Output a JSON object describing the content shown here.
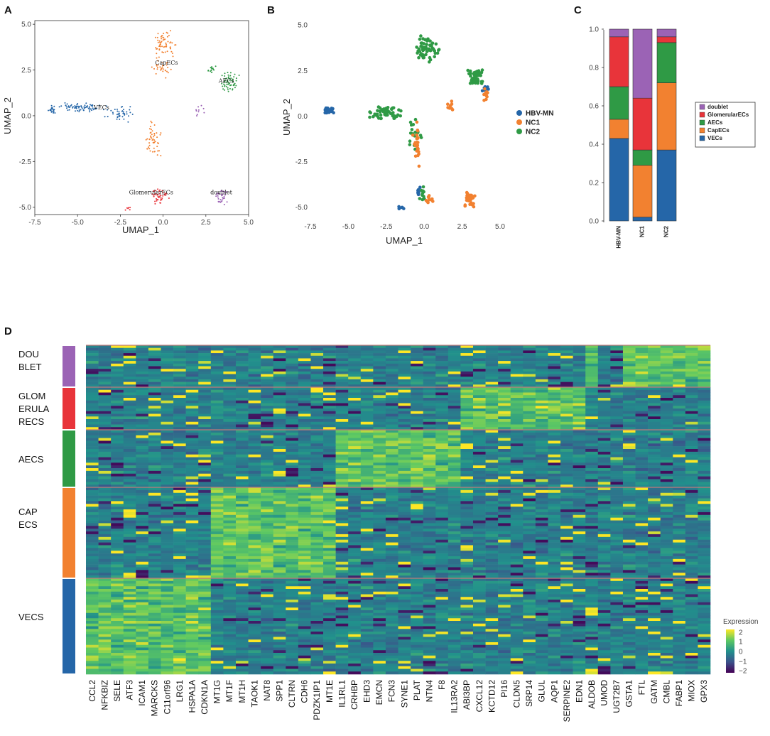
{
  "colors": {
    "doublet": "#9b63b5",
    "glomerular": "#e8343a",
    "aecs": "#2f9a45",
    "capecs": "#f28130",
    "vecs": "#2566a8"
  },
  "chart_data": [
    {
      "panel": "A",
      "type": "scatter",
      "xlabel": "UMAP_1",
      "ylabel": "UMAP_2",
      "xlim": [
        -7.5,
        5.0
      ],
      "ylim": [
        -5.4,
        5.2
      ],
      "xticks": [
        "-7.5",
        "-5.0",
        "-2.5",
        "0.0",
        "2.5",
        "5.0"
      ],
      "yticks": [
        "5.0",
        "2.5",
        "0.0",
        "-2.5",
        "-5.0"
      ],
      "clusters": [
        {
          "name": "VECs",
          "color": "#2566a8",
          "center": [
            -3.6,
            0.35
          ]
        },
        {
          "name": "CapECs",
          "color": "#f28130",
          "center": [
            0.2,
            2.8
          ]
        },
        {
          "name": "AECs",
          "color": "#2f9a45",
          "center": [
            3.7,
            1.8
          ]
        },
        {
          "name": "GlomerularECs",
          "color": "#e8343a",
          "center": [
            -0.7,
            -4.3
          ]
        },
        {
          "name": "doublet",
          "color": "#9b63b5",
          "center": [
            3.4,
            -4.3
          ]
        }
      ]
    },
    {
      "panel": "B",
      "type": "scatter",
      "xlabel": "UMAP_1",
      "ylabel": "UMAP_2",
      "xlim": [
        -7.5,
        5.0
      ],
      "ylim": [
        -5.4,
        5.2
      ],
      "xticks": [
        "-7.5",
        "-5.0",
        "-2.5",
        "0.0",
        "2.5",
        "5.0"
      ],
      "yticks": [
        "5.0",
        "2.5",
        "0.0",
        "-2.5",
        "-5.0"
      ],
      "legend": [
        {
          "name": "HBV-MN",
          "color": "#2566a8"
        },
        {
          "name": "NC1",
          "color": "#f28130"
        },
        {
          "name": "NC2",
          "color": "#2f9a45"
        }
      ]
    },
    {
      "panel": "C",
      "type": "bar",
      "stacked": true,
      "categories": [
        "HBV-MN",
        "NC1",
        "NC2"
      ],
      "ylim": [
        0,
        1.0
      ],
      "yticks": [
        "0.0",
        "0.2",
        "0.4",
        "0.6",
        "0.8",
        "1.0"
      ],
      "series": [
        {
          "name": "VECs",
          "color": "#2566a8",
          "values": [
            0.43,
            0.02,
            0.37
          ]
        },
        {
          "name": "CapECs",
          "color": "#f28130",
          "values": [
            0.1,
            0.27,
            0.35
          ]
        },
        {
          "name": "AECs",
          "color": "#2f9a45",
          "values": [
            0.17,
            0.08,
            0.21
          ]
        },
        {
          "name": "GlomerularECs",
          "color": "#e8343a",
          "values": [
            0.26,
            0.27,
            0.03
          ]
        },
        {
          "name": "doublet",
          "color": "#9b63b5",
          "values": [
            0.04,
            0.36,
            0.04
          ]
        }
      ],
      "legend_order": [
        "doublet",
        "GlomerularECs",
        "AECs",
        "CapECs",
        "VECs"
      ]
    },
    {
      "panel": "D",
      "type": "heatmap",
      "genes": [
        "CCL2",
        "NFKBIZ",
        "SELE",
        "ATF3",
        "ICAM1",
        "MARCKS",
        "C11orf96",
        "LRG1",
        "HSPA1A",
        "CDKN1A",
        "MT1G",
        "MT1F",
        "MT1H",
        "TAOK1",
        "NAT8",
        "SPP1",
        "CLTRN",
        "CDH6",
        "PDZK1IP1",
        "MT1E",
        "IL1RL1",
        "CRHBP",
        "EHD3",
        "EMCN",
        "FCN3",
        "SYNE1",
        "PLAT",
        "NTN4",
        "F8",
        "IL13RA2",
        "ABI3BP",
        "CXCL12",
        "KCTD12",
        "PI16",
        "CLDN5",
        "SRP14",
        "GLUL",
        "AQP1",
        "SERPINE2",
        "EDN1",
        "ALDOB",
        "UMOD",
        "UGT2B7",
        "GSTA1",
        "FTL",
        "GATM",
        "CMBL",
        "FABP1",
        "MIOX",
        "GPX3"
      ],
      "row_groups": [
        {
          "label_lines": [
            "DOU",
            "BLET"
          ],
          "color": "#9b63b5",
          "rows": 16,
          "hi_genes": [
            40,
            43,
            44,
            45,
            46,
            47,
            48,
            49
          ]
        },
        {
          "label_lines": [
            "GLOM",
            "ERULA",
            "RECS"
          ],
          "color": "#e8343a",
          "rows": 16,
          "hi_genes": [
            30,
            31,
            32,
            33,
            34,
            35,
            36,
            37,
            38,
            39
          ]
        },
        {
          "label_lines": [
            "AECS"
          ],
          "color": "#2f9a45",
          "rows": 21,
          "hi_genes": [
            20,
            21,
            22,
            23,
            24,
            25,
            26,
            27,
            28,
            29
          ]
        },
        {
          "label_lines": [
            "CAP",
            "ECS"
          ],
          "color": "#f28130",
          "rows": 33,
          "hi_genes": [
            10,
            11,
            12,
            13,
            14,
            15,
            16,
            17,
            18,
            19
          ]
        },
        {
          "label_lines": [
            "VECS"
          ],
          "color": "#2566a8",
          "rows": 36,
          "hi_genes": [
            0,
            1,
            2,
            3,
            4,
            5,
            6,
            7,
            8,
            9
          ]
        }
      ],
      "legend": {
        "title": "Expression",
        "ticks": [
          "2",
          "1",
          "0",
          "−1",
          "−2"
        ],
        "range": [
          -2,
          2
        ]
      }
    }
  ]
}
